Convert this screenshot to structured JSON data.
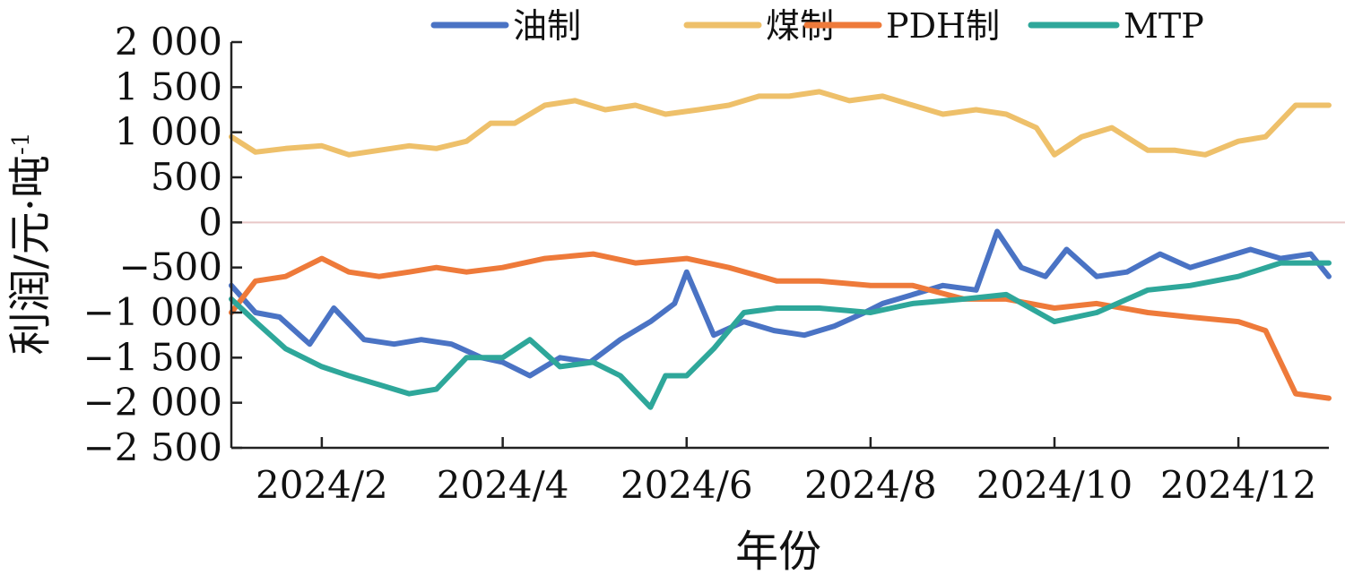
{
  "chart_data": {
    "type": "line",
    "title": "",
    "xlabel": "年份",
    "ylabel": "利润/元·吨",
    "ylabel_superscript": "-1",
    "ylim": [
      -2500,
      2000
    ],
    "yticks": [
      2000,
      1500,
      1000,
      500,
      0,
      -500,
      -1000,
      -1500,
      -2000,
      -2500
    ],
    "ytick_labels": [
      "2 000",
      "1 500",
      "1 000",
      "500",
      "0",
      "−500",
      "−1 000",
      "−1 500",
      "−2 000",
      "−2 500"
    ],
    "xticks": [
      "2024-02-01",
      "2024-04-01",
      "2024-06-01",
      "2024-08-01",
      "2024-10-01",
      "2024-12-01"
    ],
    "xtick_labels": [
      "2024/2",
      "2024/4",
      "2024/6",
      "2024/8",
      "2024/10",
      "2024/12"
    ],
    "xlim": [
      "2024-01-02",
      "2024-12-31"
    ],
    "legend_position": "top",
    "grid": false,
    "zero_line": true,
    "series": [
      {
        "name": "油制",
        "color": "#4a73c4",
        "x": [
          "2024-01-02",
          "2024-01-10",
          "2024-01-18",
          "2024-01-28",
          "2024-02-05",
          "2024-02-15",
          "2024-02-25",
          "2024-03-05",
          "2024-03-15",
          "2024-03-25",
          "2024-04-01",
          "2024-04-10",
          "2024-04-20",
          "2024-04-30",
          "2024-05-10",
          "2024-05-20",
          "2024-05-28",
          "2024-06-01",
          "2024-06-10",
          "2024-06-20",
          "2024-06-30",
          "2024-07-10",
          "2024-07-20",
          "2024-07-30",
          "2024-08-05",
          "2024-08-15",
          "2024-08-25",
          "2024-09-05",
          "2024-09-12",
          "2024-09-20",
          "2024-09-28",
          "2024-10-05",
          "2024-10-15",
          "2024-10-25",
          "2024-11-05",
          "2024-11-15",
          "2024-11-25",
          "2024-12-05",
          "2024-12-15",
          "2024-12-25",
          "2024-12-31"
        ],
        "y": [
          -700,
          -1000,
          -1050,
          -1350,
          -950,
          -1300,
          -1350,
          -1300,
          -1350,
          -1500,
          -1550,
          -1700,
          -1500,
          -1550,
          -1300,
          -1100,
          -900,
          -550,
          -1250,
          -1100,
          -1200,
          -1250,
          -1150,
          -1000,
          -900,
          -800,
          -700,
          -750,
          -100,
          -500,
          -600,
          -300,
          -600,
          -550,
          -350,
          -500,
          -400,
          -300,
          -400,
          -350,
          -600
        ]
      },
      {
        "name": "煤制",
        "color": "#eec06a",
        "x": [
          "2024-01-02",
          "2024-01-10",
          "2024-01-20",
          "2024-02-01",
          "2024-02-10",
          "2024-02-20",
          "2024-03-01",
          "2024-03-10",
          "2024-03-20",
          "2024-03-28",
          "2024-04-05",
          "2024-04-15",
          "2024-04-25",
          "2024-05-05",
          "2024-05-15",
          "2024-05-25",
          "2024-06-05",
          "2024-06-15",
          "2024-06-25",
          "2024-07-05",
          "2024-07-15",
          "2024-07-25",
          "2024-08-05",
          "2024-08-15",
          "2024-08-25",
          "2024-09-05",
          "2024-09-15",
          "2024-09-25",
          "2024-10-01",
          "2024-10-10",
          "2024-10-20",
          "2024-11-01",
          "2024-11-10",
          "2024-11-20",
          "2024-12-01",
          "2024-12-10",
          "2024-12-20",
          "2024-12-31"
        ],
        "y": [
          950,
          780,
          820,
          850,
          750,
          800,
          850,
          820,
          900,
          1100,
          1100,
          1300,
          1350,
          1250,
          1300,
          1200,
          1250,
          1300,
          1400,
          1400,
          1450,
          1350,
          1400,
          1300,
          1200,
          1250,
          1200,
          1050,
          750,
          950,
          1050,
          800,
          800,
          750,
          900,
          950,
          1300,
          1300
        ]
      },
      {
        "name": "PDH制",
        "color": "#ee7a3a",
        "x": [
          "2024-01-02",
          "2024-01-10",
          "2024-01-20",
          "2024-02-01",
          "2024-02-10",
          "2024-02-20",
          "2024-03-01",
          "2024-03-10",
          "2024-03-20",
          "2024-04-01",
          "2024-04-15",
          "2024-05-01",
          "2024-05-15",
          "2024-06-01",
          "2024-06-15",
          "2024-07-01",
          "2024-07-15",
          "2024-08-01",
          "2024-08-15",
          "2024-09-01",
          "2024-09-15",
          "2024-10-01",
          "2024-10-15",
          "2024-11-01",
          "2024-11-15",
          "2024-12-01",
          "2024-12-10",
          "2024-12-20",
          "2024-12-31"
        ],
        "y": [
          -1000,
          -650,
          -600,
          -400,
          -550,
          -600,
          -550,
          -500,
          -550,
          -500,
          -400,
          -350,
          -450,
          -400,
          -500,
          -650,
          -650,
          -700,
          -700,
          -850,
          -850,
          -950,
          -900,
          -1000,
          -1050,
          -1100,
          -1200,
          -1900,
          -1950
        ]
      },
      {
        "name": "MTP",
        "color": "#2ea79a",
        "x": [
          "2024-01-02",
          "2024-01-10",
          "2024-01-20",
          "2024-02-01",
          "2024-02-10",
          "2024-02-20",
          "2024-03-01",
          "2024-03-10",
          "2024-03-20",
          "2024-04-01",
          "2024-04-10",
          "2024-04-20",
          "2024-05-01",
          "2024-05-10",
          "2024-05-20",
          "2024-05-25",
          "2024-06-01",
          "2024-06-10",
          "2024-06-20",
          "2024-07-01",
          "2024-07-15",
          "2024-08-01",
          "2024-08-15",
          "2024-09-01",
          "2024-09-15",
          "2024-10-01",
          "2024-10-15",
          "2024-11-01",
          "2024-11-15",
          "2024-12-01",
          "2024-12-15",
          "2024-12-31"
        ],
        "y": [
          -850,
          -1100,
          -1400,
          -1600,
          -1700,
          -1800,
          -1900,
          -1850,
          -1500,
          -1500,
          -1300,
          -1600,
          -1550,
          -1700,
          -2050,
          -1700,
          -1700,
          -1400,
          -1000,
          -950,
          -950,
          -1000,
          -900,
          -850,
          -800,
          -1100,
          -1000,
          -750,
          -700,
          -600,
          -450,
          -450
        ]
      }
    ]
  }
}
